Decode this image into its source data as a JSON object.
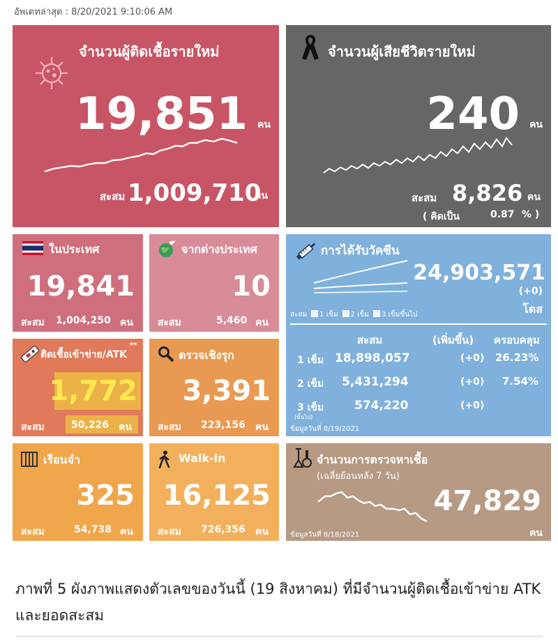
{
  "updated": "อัพเดทล่าสุด : 8/20/2021 9:10:06 AM",
  "colors": {
    "new_cases": "#c85565",
    "deaths": "#666666",
    "domestic": "#cf6f7d",
    "imported": "#d88c98",
    "vaccine": "#7fb1dc",
    "atk": "#e07a5a",
    "active": "#e89a52",
    "prison": "#f0a64b",
    "walkin": "#f3b05c",
    "tests": "#b79a84",
    "highlight": "#f6e03a"
  },
  "new_cases": {
    "title": "จำนวนผู้ติดเชื้อรายใหม่",
    "icon": "virus-icon",
    "value": "19,851",
    "unit": "คน",
    "cum_label": "สะสม",
    "cum_value": "1,009,710",
    "cum_unit": "คน"
  },
  "deaths": {
    "title": "จำนวนผู้เสียชีวิตรายใหม่",
    "icon": "black-ribbon-icon",
    "value": "240",
    "unit": "คน",
    "cum_label": "สะสม",
    "cum_value": "8,826",
    "cum_unit": "คน",
    "pct_open": "( คิดเป็น",
    "pct_value": "0.87",
    "pct_close": "% )"
  },
  "domestic": {
    "title": "ในประเทศ",
    "icon": "thai-flag-icon",
    "value": "19,841",
    "cum_label": "สะสม",
    "cum_value": "1,004,250",
    "cum_unit": "คน"
  },
  "imported": {
    "title": "จากต่างประเทศ",
    "icon": "globe-plane-icon",
    "value": "10",
    "cum_label": "สะสม",
    "cum_value": "5,460",
    "cum_unit": "คน"
  },
  "atk": {
    "title": "ติดเชื้อเข้าข่าย/ATK",
    "mark": "**",
    "icon": "atk-test-icon",
    "value": "1,772",
    "cum_label": "สะสม",
    "cum_value": "50,226",
    "cum_unit": "คน"
  },
  "active": {
    "title": "ตรวจเชิงรุก",
    "icon": "magnifier-icon",
    "value": "3,391",
    "cum_label": "สะสม",
    "cum_value": "223,156",
    "cum_unit": "คน"
  },
  "prison": {
    "title": "เรือนจำ",
    "icon": "prison-icon",
    "value": "325",
    "cum_label": "สะสม",
    "cum_value": "54,738",
    "cum_unit": "คน"
  },
  "walkin": {
    "title": "Walk-in",
    "icon": "walking-person-icon",
    "value": "16,125",
    "cum_label": "สะสม",
    "cum_value": "726,356",
    "cum_unit": "คน"
  },
  "vaccine": {
    "title": "การได้รับวัคซีน",
    "icon": "syringe-icon",
    "total": "24,903,571",
    "delta": "(+0)",
    "unit": "โดส",
    "legend": {
      "label": "สะสม",
      "d1": "1 เข็ม",
      "d2": "2 เข็ม",
      "d3": "3 เข็มขึ้นไป"
    },
    "headers": {
      "cum": "สะสม",
      "inc": "(เพิ่มขึ้น)",
      "cov": "ครอบคลุม"
    },
    "rows": [
      {
        "dose": "1 เข็ม",
        "cum": "18,898,057",
        "inc": "(+0)",
        "cov": "26.23%"
      },
      {
        "dose": "2 เข็ม",
        "cum": "5,431,294",
        "inc": "(+0)",
        "cov": "7.54%"
      },
      {
        "dose": "3 เข็ม",
        "cum": "574,220",
        "inc": "(+0)",
        "cov": ""
      }
    ],
    "dose3_sub": "(ขึ้นไป)",
    "asof": "ข้อมูลวันที่ 8/19/2021"
  },
  "tests": {
    "title": "จำนวนการตรวจหาเชื้อ",
    "subtitle": "(เฉลี่ยย้อนหลัง 7 วัน)",
    "icon": "lab-test-icon",
    "value": "47,829",
    "unit": "คน",
    "asof": "ข้อมูลวันที่ 8/18/2021"
  },
  "caption": "ภาพที่ 5 ผังภาพแสดงตัวเลขของวันนี้ (19 สิงหาคม) ที่มีจำนวนผู้ติดเชื้อเข้าข่าย ATK และยอดสะสม"
}
